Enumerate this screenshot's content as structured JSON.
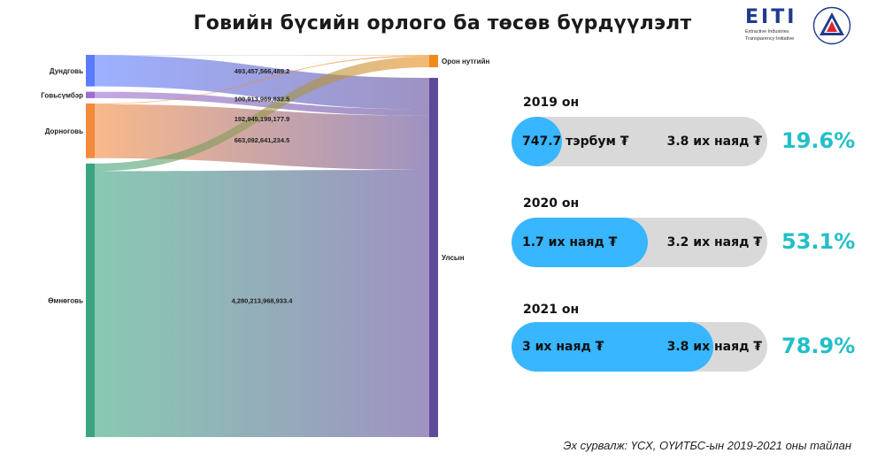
{
  "title": "Говийн бүсийн орлого ба төсөв бүрдүүлэлт",
  "logo": {
    "eiti_word": "EITI",
    "eiti_sub": [
      "Extractive Industries",
      "Transparency Initiative"
    ],
    "emblem_icon": "triangle-emblem-icon"
  },
  "chart_data": [
    {
      "type": "sankey",
      "title": "",
      "sources": [
        "Дундговь",
        "Говьсүмбэр",
        "Дорноговь",
        "Өмнөговь"
      ],
      "targets": [
        "Орон нутгийн",
        "Улсын"
      ],
      "link_labels": [
        "493,457,566,489.2",
        "100,913,969,832.5",
        "192,945,199,177.9",
        "663,092,641,234.5",
        "4,280,213,968,933.4"
      ],
      "source_totals": [
        {
          "node": "Дундговь",
          "value": 493457566489.2
        },
        {
          "node": "Говьсүмбэр",
          "value": 100913969832.5
        },
        {
          "node": "Дорноговь",
          "value": 856037840412.4
        },
        {
          "node": "Өмнөговь",
          "value": 4280213968933.4
        }
      ],
      "links": [
        {
          "source": "Дундговь",
          "target": "Орон нутгийн",
          "value": 5000000000
        },
        {
          "source": "Дундговь",
          "target": "Улсын",
          "value": 488457566489.2
        },
        {
          "source": "Говьсүмбэр",
          "target": "Орон нутгийн",
          "value": 1000000000
        },
        {
          "source": "Говьсүмбэр",
          "target": "Улсын",
          "value": 99913969832.5
        },
        {
          "source": "Дорноговь",
          "target": "Орон нутгийн",
          "value": 12000000000
        },
        {
          "source": "Дорноговь",
          "target": "Улсын",
          "value": 844037840412.4
        },
        {
          "source": "Өмнөговь",
          "target": "Орон нутгийн",
          "value": 120000000000
        },
        {
          "source": "Өмнөговь",
          "target": "Улсын",
          "value": 4160213968933.4
        }
      ],
      "colors": {
        "Дундговь": "#5b7cff",
        "Говьсүмбэр": "#9b6fcf",
        "Дорноговь": "#f48a3c",
        "Өмнөговь": "#3aa57e",
        "Орон нутгийн": "#ee8a1a",
        "Улсын": "#5e4a99"
      }
    },
    {
      "type": "bar",
      "title": "",
      "categories": [
        "2019 он",
        "2020 он",
        "2021 он"
      ],
      "series": [
        {
          "name": "",
          "values": [
            747.7,
            1700,
            3000
          ]
        },
        {
          "name": "",
          "values": [
            3800,
            3200,
            3800
          ]
        }
      ],
      "unit_note": "",
      "percent": [
        19.6,
        53.1,
        78.9
      ],
      "value_labels": [
        "747.7 тэрбум ₮",
        "1.7 их наяд ₮",
        "3 их наяд ₮"
      ],
      "total_labels": [
        "3.8 их наяд ₮",
        "3.2 их наяд ₮",
        "3.8 их наяд ₮"
      ],
      "percent_labels": [
        "19.6%",
        "53.1%",
        "78.9%"
      ],
      "colors": {
        "fill": "#38b6ff",
        "track": "#d9d9d9",
        "percent": "#22bfc8"
      }
    }
  ],
  "source": "Эх сурвалж: ҮСХ, ОҮИТБС-ын 2019-2021 оны тайлан"
}
